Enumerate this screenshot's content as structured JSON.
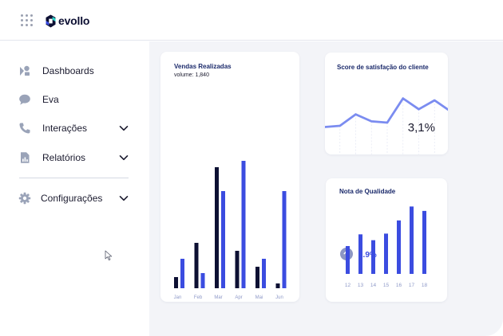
{
  "app": {
    "logo_text": "evollo"
  },
  "sidebar": {
    "items": [
      {
        "label": "Dashboards",
        "icon": "dashboards-icon",
        "has_chevron": false
      },
      {
        "label": "Eva",
        "icon": "chat-bubble-icon",
        "has_chevron": false
      },
      {
        "label": "Interações",
        "icon": "phone-icon",
        "has_chevron": true
      },
      {
        "label": "Relatórios",
        "icon": "report-icon",
        "has_chevron": true
      },
      {
        "label": "Configurações",
        "icon": "gear-icon",
        "has_chevron": true
      }
    ]
  },
  "colors": {
    "accent": "#3b4ce0",
    "dark": "#0d1033",
    "line": "#7b8cf0"
  },
  "cards": {
    "vendas": {
      "title": "Vendas Realizadas",
      "subtitle": "volume: 1,840"
    },
    "score": {
      "title": "Score de satisfação do cliente",
      "value": "3,1%"
    },
    "nota": {
      "title": "Nota de Qualidade",
      "change": "2.9%"
    }
  },
  "chart_data": [
    {
      "type": "bar",
      "title": "Vendas Realizadas",
      "categories": [
        "Jan",
        "Feb",
        "Mar",
        "Apr",
        "Mai",
        "Jun"
      ],
      "series": [
        {
          "values": [
            14,
            57,
            152,
            47,
            27,
            6
          ]
        },
        {
          "values": [
            37,
            19,
            122,
            160,
            37,
            122
          ]
        }
      ],
      "ylim": [
        0,
        165
      ]
    },
    {
      "type": "line",
      "title": "Score de satisfação do cliente",
      "x": [
        0,
        1,
        2,
        3,
        4,
        5,
        6,
        7,
        8
      ],
      "values": [
        43,
        45,
        63,
        52,
        50,
        88,
        71,
        85,
        68
      ],
      "ylim": [
        0,
        100
      ]
    },
    {
      "type": "bar",
      "title": "Nota de Qualidade",
      "categories": [
        "12",
        "13",
        "14",
        "15",
        "16",
        "17",
        "18"
      ],
      "values": [
        38,
        54,
        46,
        55,
        73,
        92,
        86
      ],
      "ylim": [
        0,
        100
      ]
    }
  ]
}
